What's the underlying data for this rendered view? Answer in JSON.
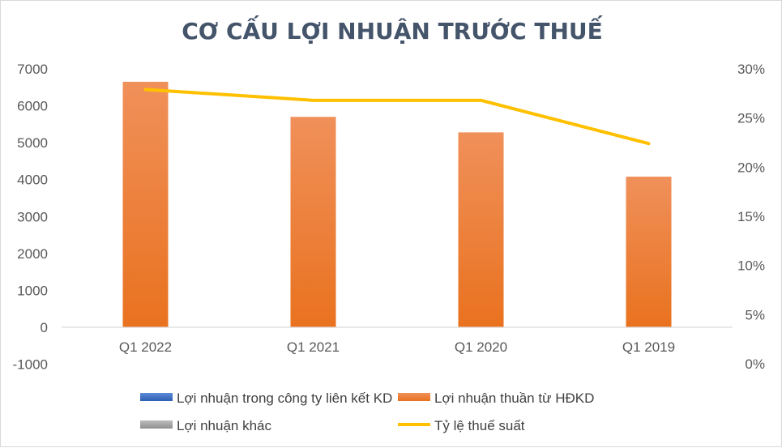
{
  "chart_data": {
    "type": "bar",
    "title": "CƠ CẤU LỢI NHUẬN TRƯỚC THUẾ",
    "categories": [
      "Q1 2022",
      "Q1 2021",
      "Q1 2020",
      "Q1 2019"
    ],
    "y_left": {
      "ticks": [
        "7000",
        "6000",
        "5000",
        "4000",
        "3000",
        "2000",
        "1000",
        "0",
        "-1000"
      ],
      "ylim": [
        -1000,
        7000
      ]
    },
    "y_right": {
      "ticks": [
        "30%",
        "25%",
        "20%",
        "15%",
        "10%",
        "5%",
        "0%"
      ],
      "ylim": [
        0,
        0.3
      ]
    },
    "series": [
      {
        "name": "Lợi nhuận trong công ty liên kết KD",
        "type": "bar",
        "axis": "left",
        "color": "#4472c4",
        "values": [
          0,
          0,
          0,
          0
        ]
      },
      {
        "name": "Lợi nhuận thuần từ HĐKD",
        "type": "bar",
        "axis": "left",
        "color": "#ed7d31",
        "values": [
          6650,
          5700,
          5280,
          4080
        ]
      },
      {
        "name": "Lợi nhuận khác",
        "type": "bar",
        "axis": "left",
        "color": "#a5a5a5",
        "values": [
          0,
          0,
          0,
          0
        ]
      },
      {
        "name": "Tỷ lệ thuế suất",
        "type": "line",
        "axis": "right",
        "color": "#ffc000",
        "values": [
          0.279,
          0.268,
          0.268,
          0.224
        ]
      }
    ],
    "grid": false,
    "legend_position": "bottom"
  }
}
